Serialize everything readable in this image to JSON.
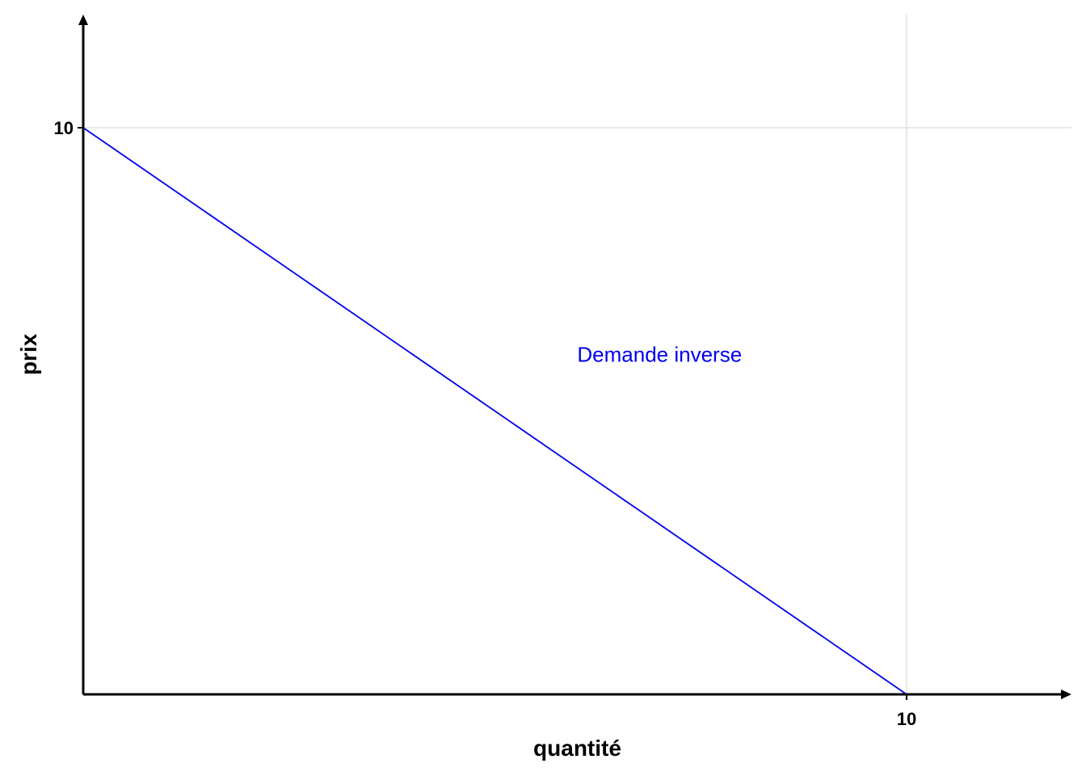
{
  "chart_data": {
    "type": "line",
    "title": "",
    "xlabel": "quantité",
    "ylabel": "prix",
    "xlim": [
      0,
      12
    ],
    "ylim": [
      0,
      12
    ],
    "grid": "major lines at ticks only",
    "x_ticks": [
      {
        "value": 10,
        "label": "10"
      }
    ],
    "y_ticks": [
      {
        "value": 10,
        "label": "10"
      }
    ],
    "series": [
      {
        "color": "#0000ee",
        "x": [
          0,
          10
        ],
        "y": [
          10,
          0
        ]
      }
    ],
    "annotations": [
      {
        "text": "Demande inverse",
        "x": 6,
        "y": 6,
        "color": "#0000ee"
      }
    ],
    "axis_color": "#000000",
    "grid_color": "#e8e8e8"
  }
}
